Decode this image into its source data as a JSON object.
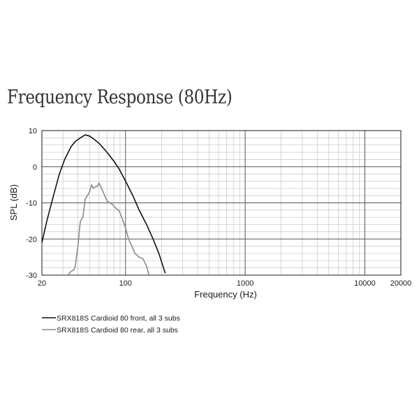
{
  "title": "Frequency Response (80Hz)",
  "chart_data": {
    "type": "line",
    "title": "Frequency Response (80Hz)",
    "xlabel": "Frequency (Hz)",
    "ylabel": "SPL (dB)",
    "x_scale": "log",
    "xlim": [
      20,
      20000
    ],
    "ylim": [
      -30,
      10
    ],
    "x_ticks": [
      {
        "value": 20,
        "label": "20"
      },
      {
        "value": 100,
        "label": "100"
      },
      {
        "value": 1000,
        "label": "1000"
      },
      {
        "value": 10000,
        "label": "10000"
      },
      {
        "value": 20000,
        "label": "20000"
      }
    ],
    "y_ticks": [
      {
        "value": 10,
        "label": "10"
      },
      {
        "value": 0,
        "label": "0"
      },
      {
        "value": -10,
        "label": "-10"
      },
      {
        "value": -20,
        "label": "-20"
      },
      {
        "value": -30,
        "label": "-30"
      }
    ],
    "grid": true,
    "legend_position": "bottom-left",
    "series": [
      {
        "name": "SRX818S Cardioid 80 front, all 3 subs",
        "color": "#111111",
        "x": [
          20,
          22,
          25,
          28,
          31,
          35,
          38,
          42,
          46,
          50,
          55,
          60,
          66,
          72,
          80,
          88,
          100,
          115,
          130,
          150,
          170,
          190,
          215
        ],
        "y": [
          -21,
          -15,
          -8,
          -2,
          2,
          5.5,
          7,
          8,
          8.8,
          8.5,
          7.5,
          6.5,
          5,
          3.5,
          1.5,
          -0.5,
          -4,
          -8,
          -12,
          -16,
          -20,
          -24,
          -29.5
        ]
      },
      {
        "name": "SRX818S Cardioid 80 rear, all 3 subs",
        "color": "#8a8a8a",
        "x": [
          33,
          35,
          37,
          38,
          40,
          41,
          42,
          44,
          46,
          48,
          50,
          52,
          54,
          56,
          58,
          60,
          63,
          66,
          70,
          74,
          78,
          83,
          88,
          93,
          100,
          106,
          113,
          120,
          130,
          140,
          150,
          157
        ],
        "y": [
          -30,
          -29,
          -28.5,
          -27.5,
          -22,
          -18,
          -15,
          -14,
          -9,
          -8,
          -7,
          -5,
          -6,
          -5.5,
          -5.5,
          -4.5,
          -6,
          -7.5,
          -9.5,
          -10,
          -10.5,
          -11.5,
          -12,
          -14,
          -17,
          -20,
          -22,
          -24,
          -25,
          -25.5,
          -27.5,
          -30
        ]
      }
    ]
  }
}
